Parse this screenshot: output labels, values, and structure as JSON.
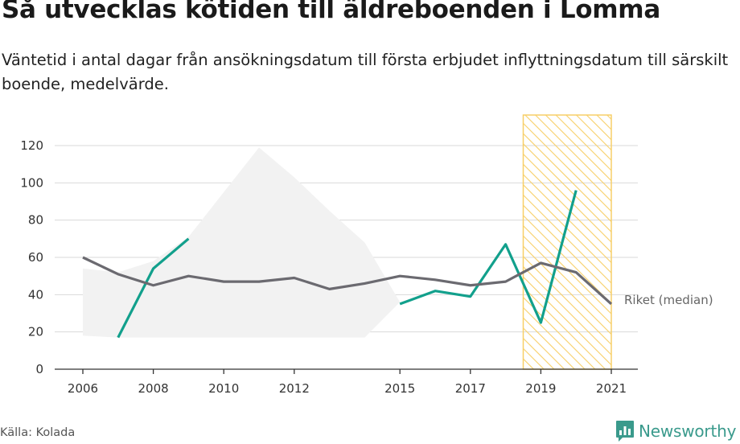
{
  "header": {
    "title": "Så utvecklas kötiden till äldreboenden i Lomma",
    "subtitle": "Väntetid i antal dagar från ansökningsdatum till första erbjudet inflyttningsdatum till särskilt boende, medelvärde."
  },
  "footer": {
    "source": "Källa: Kolada",
    "brand": "Newsworthy"
  },
  "colors": {
    "lomma": "#12a08c",
    "riket": "#6b6a70",
    "highlight": "#f7cf68",
    "grid": "#d9d9d9",
    "background_shape": "#f2f2f2"
  },
  "chart_data": {
    "type": "line",
    "x_ticks": [
      2006,
      2008,
      2010,
      2012,
      2015,
      2017,
      2019,
      2021
    ],
    "y_ticks": [
      0,
      20,
      40,
      60,
      80,
      100,
      120
    ],
    "xlim": [
      2006,
      2021
    ],
    "ylim": [
      0,
      120
    ],
    "grid": true,
    "highlight_range": [
      2018.5,
      2021
    ],
    "series": [
      {
        "key": "lomma",
        "x": [
          2007,
          2008,
          2009,
          2015,
          2016,
          2017,
          2018,
          2019,
          2020
        ],
        "y": [
          17,
          54,
          70,
          35,
          42,
          39,
          67,
          25,
          96
        ],
        "segments": [
          [
            2007,
            2008,
            2009
          ],
          [
            2015,
            2016,
            2017,
            2018,
            2019,
            2020
          ]
        ]
      },
      {
        "key": "riket",
        "name": "Riket (median)",
        "x": [
          2006,
          2007,
          2008,
          2009,
          2010,
          2011,
          2012,
          2013,
          2014,
          2015,
          2016,
          2017,
          2018,
          2019,
          2020,
          2021
        ],
        "y": [
          60,
          51,
          45,
          50,
          47,
          47,
          49,
          43,
          46,
          50,
          48,
          45,
          47,
          57,
          52,
          35
        ]
      }
    ],
    "background_range": {
      "x": [
        2006,
        2007,
        2008,
        2009,
        2010,
        2011,
        2012,
        2013,
        2014,
        2015
      ],
      "upper": [
        54,
        52,
        58,
        71,
        95,
        119,
        103,
        85,
        68,
        36
      ],
      "lower": [
        18,
        17,
        17,
        17,
        17,
        17,
        17,
        17,
        17,
        36
      ]
    }
  }
}
